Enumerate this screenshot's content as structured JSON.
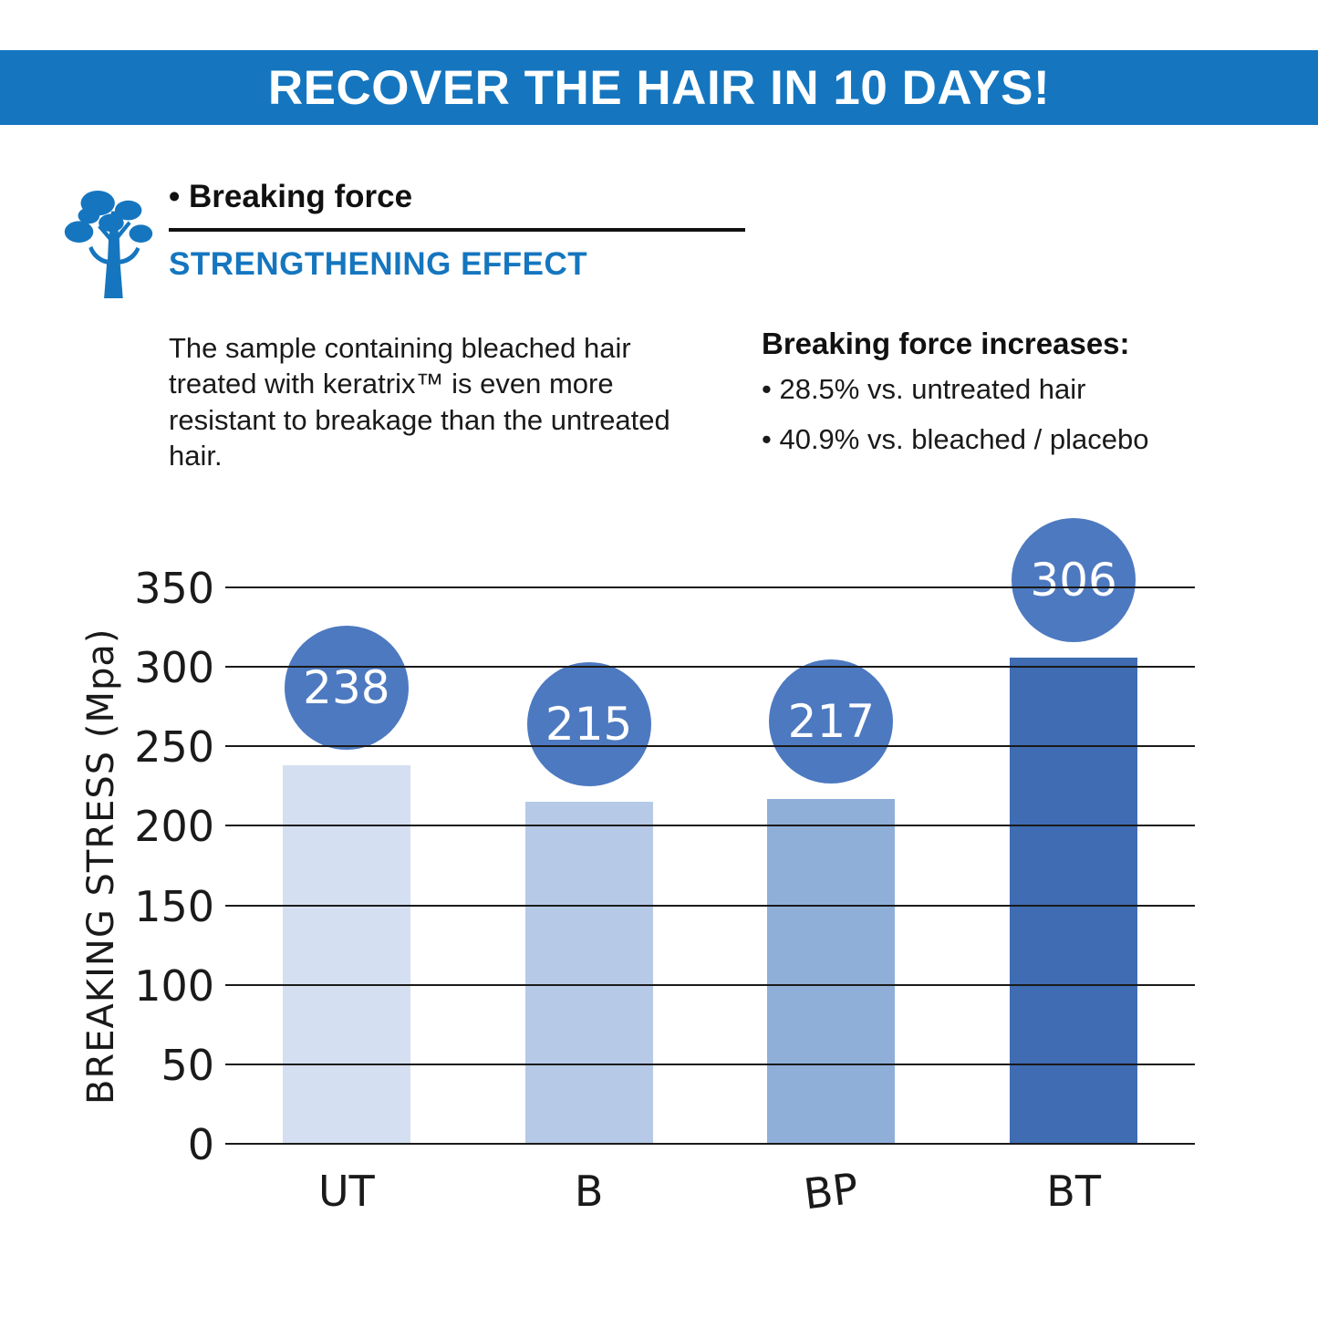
{
  "header": {
    "title": "RECOVER THE HAIR IN 10 DAYS!"
  },
  "section": {
    "bullet_heading": "• Breaking force",
    "subheading": "STRENGTHENING EFFECT",
    "paragraph": "The sample containing bleached hair treated with keratrix™ is even more resistant to breakage than the untreated hair."
  },
  "increases": {
    "heading": "Breaking force increases:",
    "bullets": [
      "• 28.5% vs. untreated hair",
      "• 40.9% vs. bleached / placebo"
    ]
  },
  "icons": {
    "tree": "tree-icon"
  },
  "colors": {
    "banner_blue": "#1576bf",
    "accent_blue": "#1576bf",
    "circle_blue": "#4d79c0",
    "text": "#1a1a1a"
  },
  "chart_data": {
    "type": "bar",
    "categories": [
      "UT",
      "B",
      "BP",
      "BT"
    ],
    "values": [
      238,
      215,
      217,
      306
    ],
    "title": "",
    "xlabel": "",
    "ylabel": "BREAKING STRESS (Mpa)",
    "ylim": [
      0,
      350
    ],
    "yticks": [
      0,
      50,
      100,
      150,
      200,
      250,
      300,
      350
    ],
    "grid": true,
    "legend": "none",
    "bar_colors": [
      "#d4e0f1",
      "#b6c9e7",
      "#8fafd9",
      "#3f6cb3"
    ],
    "label_circle_color": "#4d79c0"
  }
}
